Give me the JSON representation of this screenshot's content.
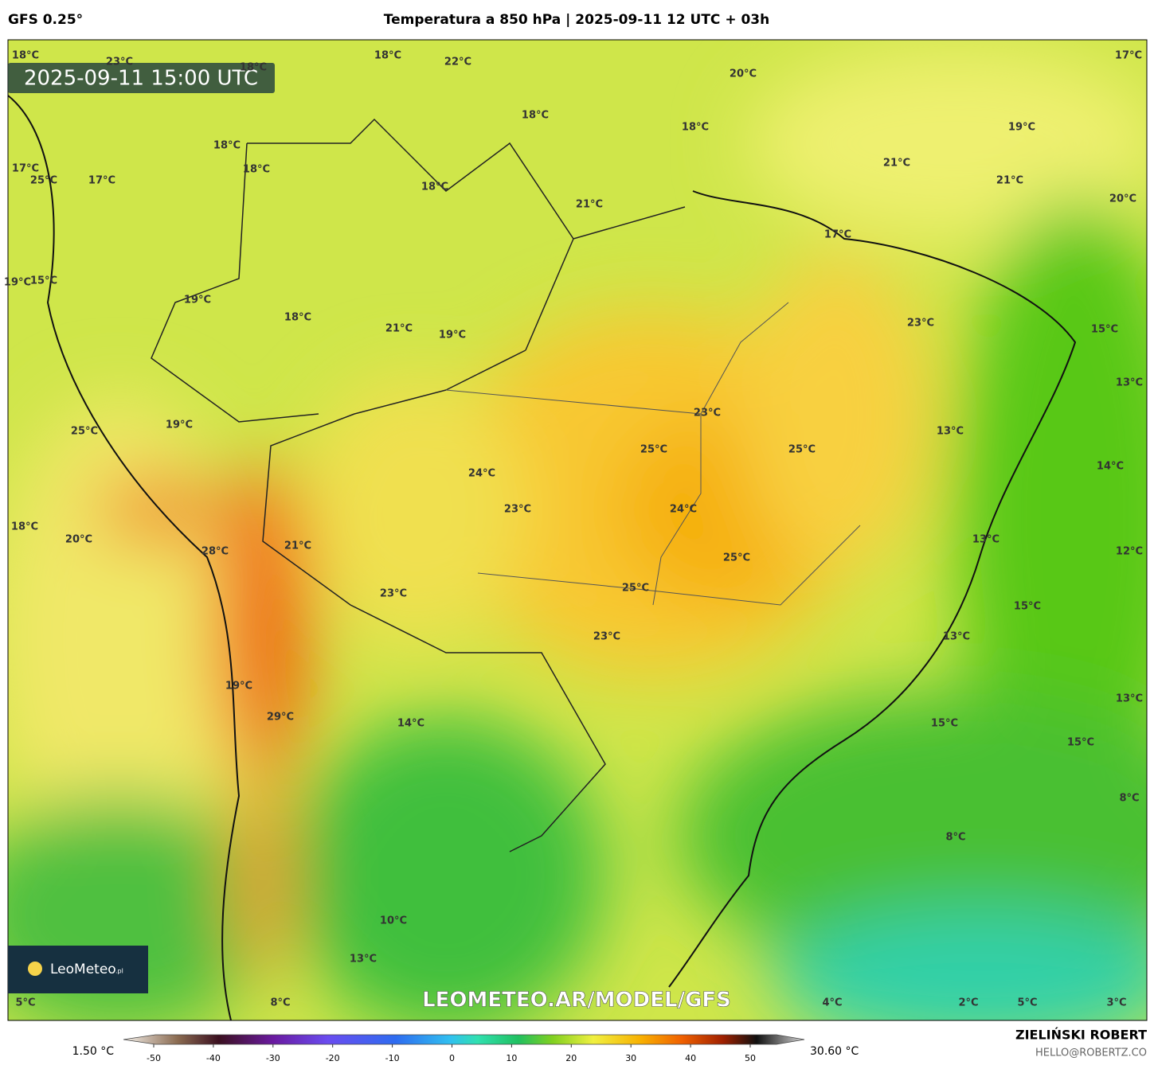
{
  "header": {
    "model": "GFS 0.25°",
    "title": "Temperatura a 850 hPa | 2025-09-11 12 UTC + 03h"
  },
  "map": {
    "timestamp": "2025-09-11 15:00 UTC",
    "labels": [
      "18°C",
      "23°C",
      "18°C",
      "22°C",
      "18°C",
      "17°C",
      "20°C",
      "18°C",
      "18°C",
      "19°C",
      "18°C",
      "18°C",
      "21°C",
      "21°C",
      "17°C",
      "25°C",
      "17°C",
      "18°C",
      "21°C",
      "20°C",
      "17°C",
      "19°C",
      "15°C",
      "19°C",
      "18°C",
      "21°C",
      "19°C",
      "23°C",
      "15°C",
      "13°C",
      "23°C",
      "19°C",
      "25°C",
      "13°C",
      "25°C",
      "25°C",
      "14°C",
      "24°C",
      "23°C",
      "24°C",
      "18°C",
      "20°C",
      "21°C",
      "13°C",
      "12°C",
      "28°C",
      "25°C",
      "23°C",
      "25°C",
      "15°C",
      "23°C",
      "13°C",
      "19°C",
      "13°C",
      "29°C",
      "14°C",
      "15°C",
      "15°C",
      "8°C",
      "8°C",
      "10°C",
      "13°C",
      "5°C",
      "8°C",
      "4°C",
      "2°C",
      "5°C",
      "3°C"
    ],
    "logo": "LeoMeteo",
    "logo_suffix": ".pl",
    "watermark": "LEOMETEO.AR/MODEL/GFS"
  },
  "colorbar": {
    "min_label": "1.50 °C",
    "max_label": "30.60 °C",
    "ticks": [
      -50,
      -40,
      -30,
      -20,
      -10,
      0,
      10,
      20,
      30,
      40,
      50
    ]
  },
  "footer": {
    "author": "ZIELIŃSKI ROBERT",
    "email": "HELLO@ROBERTZ.CO"
  }
}
